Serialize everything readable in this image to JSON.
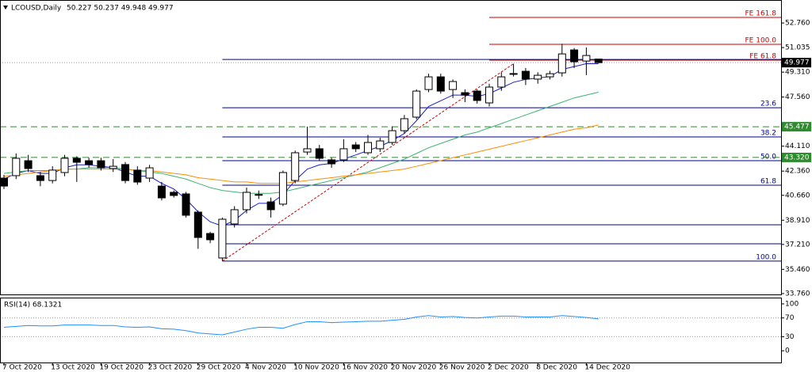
{
  "chart_data": {
    "type": "candlestick",
    "title": "LCOUSD,Daily",
    "subtitle": "50.227 50.237 49.948 49.977",
    "categories": [
      "7 Oct 2020",
      null,
      null,
      null,
      "13 Oct 2020",
      null,
      null,
      null,
      "19 Oct 2020",
      null,
      null,
      null,
      "23 Oct 2020",
      null,
      null,
      null,
      "29 Oct 2020",
      null,
      null,
      null,
      "4 Nov 2020",
      null,
      null,
      null,
      "10 Nov 2020",
      null,
      null,
      null,
      "16 Nov 2020",
      null,
      null,
      null,
      "20 Nov 2020",
      null,
      null,
      null,
      "26 Nov 2020",
      null,
      null,
      null,
      "2 Dec 2020",
      null,
      null,
      null,
      "8 Dec 2020",
      null,
      null,
      null,
      "14 Dec 2020",
      null
    ],
    "open": [
      41.87,
      42.04,
      43.09,
      42.04,
      41.7,
      42.26,
      43.26,
      43.09,
      43.09,
      42.54,
      42.82,
      42.43,
      41.87,
      41.31,
      40.87,
      40.76,
      39.48,
      37.98,
      36.26,
      38.65,
      39.65,
      40.7,
      40.2,
      40.04,
      41.7,
      43.7,
      43.93,
      43.15,
      43.15,
      44.2,
      43.65,
      43.93,
      44.37,
      45.2,
      46.15,
      48.09,
      48.98,
      48.09,
      47.87,
      47.98,
      47.15,
      48.26,
      49.19,
      49.37,
      48.82,
      48.98,
      49.26,
      50.87,
      50.09,
      50.227
    ],
    "high": [
      42.1,
      43.6,
      43.5,
      42.3,
      42.7,
      43.5,
      43.4,
      43.3,
      43.3,
      43.2,
      43.0,
      42.7,
      42.8,
      41.6,
      41.0,
      40.9,
      39.6,
      38.1,
      39.1,
      39.9,
      41.2,
      41.0,
      40.5,
      42.4,
      43.8,
      45.48,
      44.2,
      43.3,
      44.6,
      44.4,
      44.9,
      44.7,
      45.5,
      46.3,
      48.1,
      49.2,
      49.2,
      48.8,
      48.1,
      48.1,
      48.5,
      49.3,
      49.9,
      49.6,
      49.3,
      49.4,
      51.3,
      51.0,
      51.04,
      50.237
    ],
    "low": [
      41.1,
      41.8,
      42.3,
      41.3,
      41.5,
      42.0,
      41.6,
      42.6,
      42.4,
      42.3,
      41.5,
      41.4,
      41.6,
      40.3,
      40.5,
      39.1,
      36.9,
      37.3,
      36.04,
      38.4,
      39.4,
      40.4,
      39.1,
      39.9,
      41.5,
      43.5,
      43.1,
      42.6,
      43.0,
      43.7,
      43.5,
      43.7,
      44.2,
      45.0,
      46.0,
      47.9,
      47.8,
      47.5,
      47.2,
      47.1,
      46.9,
      48.0,
      49.0,
      48.4,
      48.5,
      48.8,
      49.0,
      49.6,
      49.1,
      49.948
    ],
    "close": [
      41.31,
      43.26,
      42.54,
      41.7,
      42.43,
      43.26,
      42.98,
      42.82,
      42.59,
      42.7,
      41.7,
      41.59,
      42.59,
      40.48,
      40.65,
      39.26,
      37.7,
      37.54,
      38.98,
      39.65,
      40.87,
      40.72,
      39.65,
      42.26,
      43.65,
      43.93,
      43.26,
      42.87,
      43.93,
      43.93,
      44.37,
      44.48,
      45.2,
      46.04,
      47.98,
      48.98,
      47.98,
      48.65,
      47.7,
      47.32,
      48.26,
      48.98,
      49.21,
      48.82,
      49.09,
      49.2,
      50.59,
      50.04,
      50.48,
      49.977
    ],
    "up_color": "#ffffff",
    "down_color": "#000000",
    "series": [
      {
        "color": "#1c1cc8",
        "values": [
          41.8,
          42.2,
          42.4,
          42.2,
          42.2,
          42.6,
          42.8,
          42.8,
          42.7,
          42.6,
          42.3,
          42.0,
          42.0,
          41.5,
          41.1,
          40.4,
          39.5,
          38.8,
          38.5,
          38.9,
          39.6,
          40.1,
          40.1,
          40.7,
          41.7,
          42.5,
          42.8,
          42.9,
          43.2,
          43.5,
          43.8,
          44.1,
          44.5,
          45.0,
          45.9,
          46.9,
          47.3,
          47.7,
          47.7,
          47.6,
          47.8,
          48.2,
          48.6,
          48.8,
          48.9,
          49.0,
          49.5,
          49.7,
          49.9,
          49.9
        ]
      },
      {
        "color": "#3cb371",
        "values": [
          42.2,
          42.3,
          42.4,
          42.4,
          42.4,
          42.5,
          42.5,
          42.6,
          42.6,
          42.6,
          42.5,
          42.4,
          42.3,
          42.2,
          42.0,
          41.8,
          41.5,
          41.2,
          41.0,
          40.9,
          40.8,
          40.8,
          40.8,
          40.9,
          41.1,
          41.3,
          41.5,
          41.7,
          41.9,
          42.1,
          42.3,
          42.6,
          42.9,
          43.2,
          43.6,
          44.0,
          44.3,
          44.6,
          44.9,
          45.1,
          45.4,
          45.7,
          46.0,
          46.3,
          46.6,
          46.9,
          47.2,
          47.5,
          47.7,
          47.9
        ]
      },
      {
        "color": "#ff8c00",
        "values": [
          42.0,
          42.1,
          42.2,
          42.3,
          42.4,
          42.5,
          42.5,
          42.5,
          42.5,
          42.5,
          42.5,
          42.4,
          42.4,
          42.3,
          42.2,
          42.1,
          41.9,
          41.8,
          41.7,
          41.6,
          41.6,
          41.5,
          41.5,
          41.5,
          41.6,
          41.7,
          41.8,
          41.9,
          42.0,
          42.1,
          42.2,
          42.3,
          42.4,
          42.5,
          42.7,
          42.9,
          43.1,
          43.3,
          43.5,
          43.7,
          43.9,
          44.1,
          44.3,
          44.5,
          44.7,
          44.9,
          45.1,
          45.3,
          45.4,
          45.6
        ]
      }
    ],
    "ylim": [
      33.7,
      54.32
    ],
    "yticks": [
      {
        "value": 52.76,
        "label": "52.760"
      },
      {
        "value": 51.035,
        "label": "51.035"
      },
      {
        "value": 49.31,
        "label": "49.310"
      },
      {
        "value": 47.56,
        "label": "47.560"
      },
      {
        "value": 44.11,
        "label": "44.110"
      },
      {
        "value": 42.36,
        "label": "42.360"
      },
      {
        "value": 40.66,
        "label": "40.660"
      },
      {
        "value": 38.91,
        "label": "38.910"
      },
      {
        "value": 37.21,
        "label": "37.210"
      },
      {
        "value": 35.46,
        "label": "35.460"
      },
      {
        "value": 33.76,
        "label": "33.760"
      }
    ],
    "last_price": {
      "value": 49.977,
      "label": "49.977"
    },
    "levels": {
      "color": "#2e8b2e",
      "lines": [
        {
          "value": 45.477,
          "label": "45.477"
        },
        {
          "value": 43.32,
          "label": "43.320"
        }
      ]
    },
    "fib_retracement": {
      "color": "#00008b",
      "start": 18,
      "levels": [
        {
          "name": null,
          "value": 50.2
        },
        {
          "name": "23.6",
          "value": 46.81
        },
        {
          "name": "38.2",
          "value": 44.76
        },
        {
          "name": "50.0",
          "value": 43.09
        },
        {
          "name": "61.8",
          "value": 41.37
        },
        {
          "name": null,
          "value": 38.59
        },
        {
          "name": null,
          "value": 37.26
        },
        {
          "name": "100.0",
          "value": 36.04
        }
      ]
    },
    "fib_expansion": {
      "color": "#cc0000",
      "start": 40,
      "levels": [
        {
          "name": "FE 161.8",
          "value": 53.15
        },
        {
          "name": "FE 100.0",
          "value": 51.26
        },
        {
          "name": "FE 61.8",
          "value": 50.15
        }
      ],
      "trend": {
        "x": [
          18,
          42
        ],
        "y": [
          36.04,
          49.9
        ]
      }
    },
    "rsi": {
      "title": "RSI(14) 68.1321",
      "color": "#1e90ff",
      "ylim": [
        -25,
        111.7
      ],
      "yticks": [
        100,
        70,
        30,
        0
      ],
      "levels": [
        70,
        30
      ],
      "values": [
        50,
        52,
        54,
        53,
        53,
        55,
        55,
        55,
        54,
        54,
        51,
        50,
        51,
        47,
        46,
        43,
        38,
        36,
        34,
        40,
        46,
        50,
        50,
        48,
        56,
        62,
        62,
        60,
        61,
        62,
        63,
        63,
        65,
        67,
        72,
        75,
        72,
        73,
        71,
        70,
        72,
        74,
        74,
        72,
        72,
        72,
        75,
        73,
        71,
        68
      ]
    }
  }
}
